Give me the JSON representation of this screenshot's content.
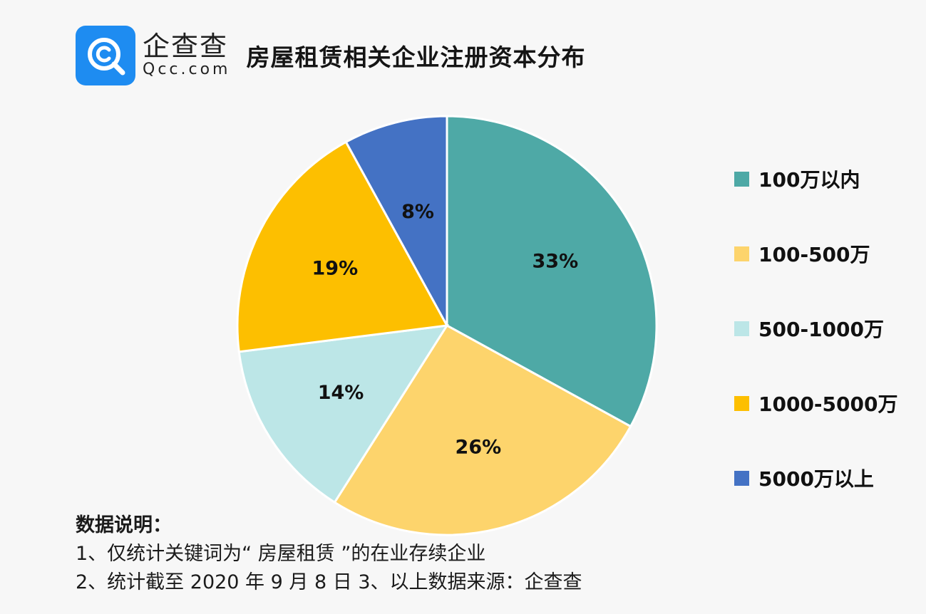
{
  "header": {
    "logo_cn": "企查查",
    "logo_en": "Qcc.com",
    "title": "房屋租赁相关企业注册资本分布"
  },
  "chart_data": {
    "type": "pie",
    "categories": [
      "100万以内",
      "100-500万",
      "500-1000万",
      "1000-5000万",
      "5000万以上"
    ],
    "values": [
      33,
      26,
      14,
      19,
      8
    ],
    "labels": [
      "33%",
      "26%",
      "14%",
      "19%",
      "8%"
    ],
    "colors": [
      "#4ea9a6",
      "#fdd46c",
      "#bce6e7",
      "#fdbf00",
      "#4472c4"
    ],
    "legend_position": "right"
  },
  "notes": {
    "heading": "数据说明：",
    "line1": "1、仅统计关键词为“ 房屋租赁 ”的在业存续企业",
    "line2": "2、统计截至 2020 年 9 月 8 日  3、以上数据来源：企查查"
  }
}
